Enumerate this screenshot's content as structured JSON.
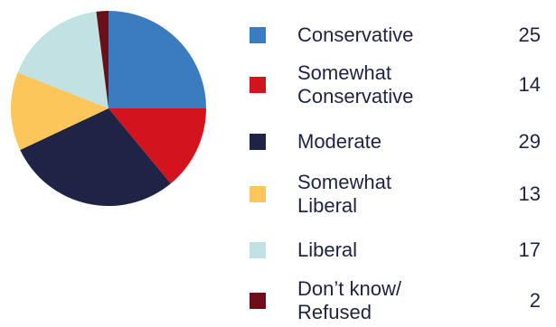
{
  "chart_data": {
    "type": "pie",
    "categories": [
      "Conservative",
      "Somewhat\nConservative",
      "Moderate",
      "Somewhat\nLiberal",
      "Liberal",
      "Don’t know/\nRefused"
    ],
    "values": [
      25,
      14,
      29,
      13,
      17,
      2
    ],
    "value_labels": [
      "25",
      "14",
      "29",
      "13",
      "17",
      "2"
    ],
    "colors": [
      "#3b7bbf",
      "#d3141f",
      "#1f2346",
      "#fdc65a",
      "#c1e1e2",
      "#6b0f18"
    ],
    "legend_position": "right"
  }
}
